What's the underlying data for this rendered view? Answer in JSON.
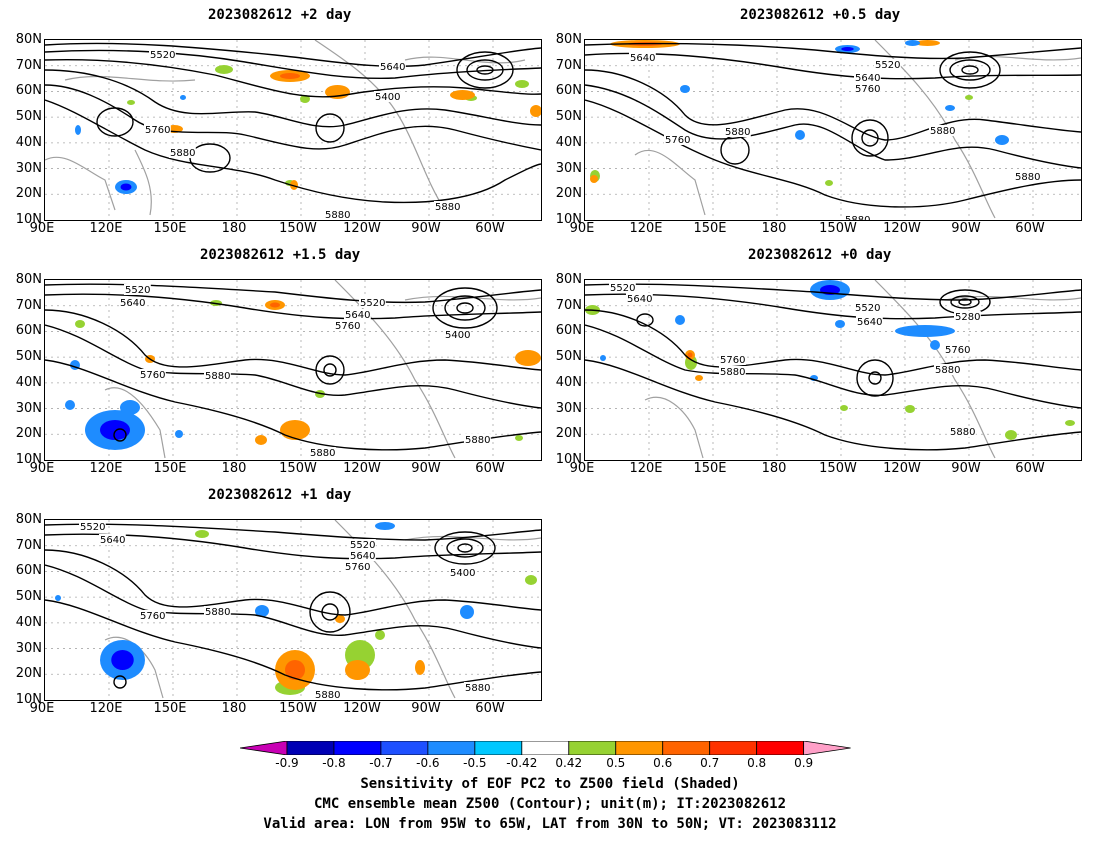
{
  "panels": [
    {
      "id": "p2",
      "title": "2023082612 +2 day",
      "contour_labels": [
        "5520",
        "5640",
        "5760",
        "5880",
        "5880",
        "5880",
        "5400"
      ]
    },
    {
      "id": "p05",
      "title": "2023082612 +0.5 day",
      "contour_labels": [
        "5640",
        "5520",
        "5640",
        "5760",
        "5760",
        "5880",
        "5880",
        "5880",
        "5880"
      ]
    },
    {
      "id": "p15",
      "title": "2023082612 +1.5 day",
      "contour_labels": [
        "5520",
        "5640",
        "5520",
        "5640",
        "5760",
        "5760",
        "5880",
        "5400",
        "5880",
        "5880"
      ]
    },
    {
      "id": "p0",
      "title": "2023082612 +0 day",
      "contour_labels": [
        "5520",
        "5640",
        "5520",
        "5640",
        "5280",
        "5760",
        "5880",
        "5760",
        "5880",
        "5880"
      ]
    },
    {
      "id": "p1",
      "title": "2023082612 +1 day",
      "contour_labels": [
        "5520",
        "5640",
        "5520",
        "5640",
        "5760",
        "5760",
        "5880",
        "5400",
        "5880",
        "5880"
      ]
    }
  ],
  "axes": {
    "lat_labels": [
      "80N",
      "70N",
      "60N",
      "50N",
      "40N",
      "30N",
      "20N",
      "10N"
    ],
    "lon_labels": [
      "90E",
      "120E",
      "150E",
      "180",
      "150W",
      "120W",
      "90W",
      "60W"
    ]
  },
  "colorbar": {
    "labels": [
      "-0.9",
      "-0.8",
      "-0.7",
      "-0.6",
      "-0.5",
      "-0.42",
      "0.42",
      "0.5",
      "0.6",
      "0.7",
      "0.8",
      "0.9"
    ],
    "colors": [
      "#0000b4",
      "#0000ff",
      "#1e50ff",
      "#1e8cff",
      "#00c8ff",
      "#ffffff",
      "#96d232",
      "#ff9600",
      "#ff6400",
      "#ff3200",
      "#ff0000"
    ],
    "low_end_color": "#c800b4",
    "high_end_color": "#ffa0c8"
  },
  "caption": {
    "line1": "Sensitivity of EOF PC2 to Z500 field (Shaded)",
    "line2": "CMC ensemble mean Z500 (Contour); unit(m); IT:2023082612",
    "line3": "Valid area: LON from 95W to 65W, LAT from 30N to 50N; VT: 2023083112"
  }
}
